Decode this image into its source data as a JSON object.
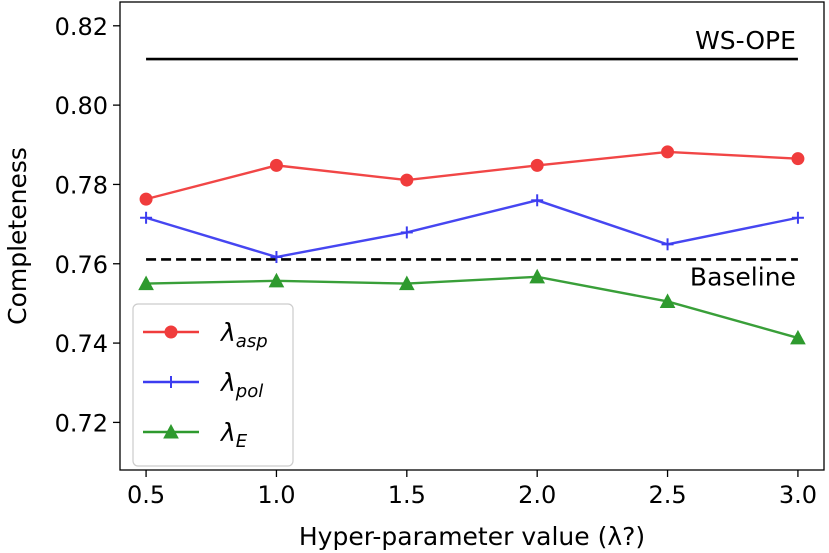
{
  "chart_data": {
    "type": "line",
    "title": "",
    "xlabel": "Hyper-parameter value (λ?)",
    "ylabel": "Completeness",
    "x": [
      0.5,
      1.0,
      1.5,
      2.0,
      2.5,
      3.0
    ],
    "x_tick_labels": [
      "0.5",
      "1.0",
      "1.5",
      "2.0",
      "2.5",
      "3.0"
    ],
    "xlim": [
      0.4,
      3.1
    ],
    "ylim": [
      0.708,
      0.826
    ],
    "y_ticks": [
      0.72,
      0.74,
      0.76,
      0.78,
      0.8,
      0.82
    ],
    "y_tick_labels": [
      "0.72",
      "0.74",
      "0.76",
      "0.78",
      "0.80",
      "0.82"
    ],
    "grid": false,
    "legend_position": "lower-left",
    "series": [
      {
        "name": "asp",
        "lambda": "λ",
        "subscript": "asp",
        "color": "#f03c3c",
        "marker": "circle",
        "values": [
          0.7763,
          0.7848,
          0.7811,
          0.7848,
          0.7882,
          0.7865
        ]
      },
      {
        "name": "pol",
        "lambda": "λ",
        "subscript": "pol",
        "color": "#3c3cf0",
        "marker": "plus",
        "values": [
          0.7716,
          0.7617,
          0.7679,
          0.776,
          0.7649,
          0.7716
        ]
      },
      {
        "name": "E",
        "lambda": "λ",
        "subscript": "E",
        "color": "#2e9a2e",
        "marker": "triangle",
        "values": [
          0.755,
          0.7557,
          0.755,
          0.7567,
          0.7505,
          0.7413
        ]
      }
    ],
    "reference_lines": [
      {
        "label": "WS-OPE",
        "value": 0.8116,
        "style": "solid",
        "color": "#000000"
      },
      {
        "label": "Baseline",
        "value": 0.7611,
        "style": "dashed",
        "color": "#000000"
      }
    ]
  }
}
